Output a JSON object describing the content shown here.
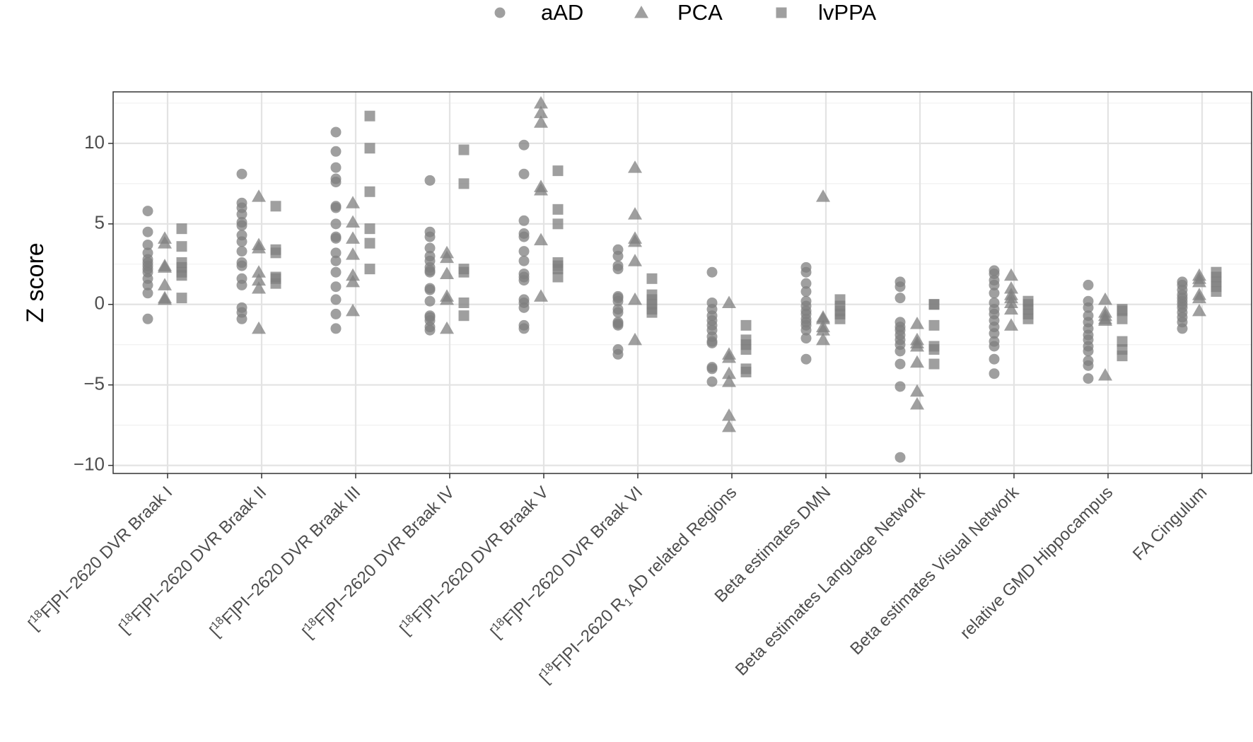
{
  "chart_data": {
    "type": "scatter",
    "title": "",
    "xlabel": "",
    "ylabel": "Z score",
    "ylim": [
      -10.5,
      13.2
    ],
    "yticks": [
      -10,
      -5,
      0,
      5,
      10
    ],
    "ytick_labels": [
      "−10",
      "−5",
      "0",
      "5",
      "10"
    ],
    "grid": true,
    "legend_position": "top",
    "categories": [
      {
        "pre": "[",
        "sup": "18",
        "post": "F]PI−2620 DVR Braak I"
      },
      {
        "pre": "[",
        "sup": "18",
        "post": "F]PI−2620 DVR Braak II"
      },
      {
        "pre": "[",
        "sup": "18",
        "post": "F]PI−2620 DVR Braak III"
      },
      {
        "pre": "[",
        "sup": "18",
        "post": "F]PI−2620 DVR Braak IV"
      },
      {
        "pre": "[",
        "sup": "18",
        "post": "F]PI−2620 DVR Braak V"
      },
      {
        "pre": "[",
        "sup": "18",
        "post": "F]PI−2620 DVR Braak VI"
      },
      {
        "pre": "[",
        "sup": "18",
        "post": "F]PI−2620 R",
        "sub": "1",
        "post2": " AD related Regions"
      },
      {
        "pre": "Beta estimates DMN"
      },
      {
        "pre": "Beta estimates Language Network"
      },
      {
        "pre": "Beta estimates Visual Network"
      },
      {
        "pre": "relative GMD Hippocampus"
      },
      {
        "pre": "FA Cingulum"
      }
    ],
    "series": [
      {
        "name": "aAD",
        "marker": "circle",
        "color": "#7f7f7f",
        "values": [
          [
            5.8,
            4.5,
            3.7,
            3.2,
            2.8,
            2.6,
            2.4,
            2.2,
            2.0,
            1.6,
            1.2,
            0.7,
            -0.9
          ],
          [
            8.1,
            6.3,
            6.0,
            5.6,
            5.1,
            4.9,
            4.3,
            3.9,
            3.3,
            2.6,
            2.4,
            1.6,
            1.2,
            -0.2,
            -0.5,
            -0.9
          ],
          [
            10.7,
            9.5,
            8.5,
            7.8,
            7.6,
            6.1,
            6.0,
            5.0,
            4.2,
            4.1,
            3.2,
            2.7,
            2.0,
            1.1,
            0.3,
            -0.6,
            -1.5
          ],
          [
            7.7,
            4.5,
            4.2,
            3.5,
            3.0,
            2.7,
            2.3,
            2.1,
            2.0,
            1.0,
            0.9,
            0.2,
            -0.7,
            -0.8,
            -1.0,
            -1.4,
            -1.6
          ],
          [
            9.9,
            8.1,
            5.2,
            4.4,
            4.2,
            3.3,
            2.7,
            1.9,
            1.7,
            1.5,
            0.3,
            0.1,
            -0.2,
            -1.3,
            -1.5
          ],
          [
            3.4,
            3.0,
            2.4,
            2.2,
            0.5,
            0.4,
            0.2,
            -0.3,
            -0.5,
            -1.1,
            -1.2,
            -1.3,
            -2.8,
            -3.1
          ],
          [
            2.0,
            0.1,
            -0.3,
            -0.7,
            -1.0,
            -1.3,
            -1.6,
            -2.0,
            -2.3,
            -2.4,
            -3.9,
            -4.0,
            -4.8
          ],
          [
            2.3,
            2.0,
            1.3,
            0.8,
            0.2,
            -0.1,
            -0.4,
            -0.6,
            -0.9,
            -1.1,
            -1.3,
            -1.6,
            -2.1,
            -3.4
          ],
          [
            1.4,
            1.1,
            0.4,
            -1.1,
            -1.4,
            -1.6,
            -1.9,
            -2.2,
            -2.5,
            -2.9,
            -3.7,
            -5.1,
            -9.5
          ],
          [
            2.1,
            1.9,
            1.5,
            1.2,
            0.7,
            0.1,
            -0.3,
            -0.6,
            -1.0,
            -1.4,
            -1.8,
            -2.3,
            -2.6,
            -3.4,
            -4.3
          ],
          [
            1.2,
            0.2,
            -0.2,
            -0.7,
            -1.1,
            -1.5,
            -1.9,
            -2.2,
            -2.6,
            -2.9,
            -3.5,
            -3.8,
            -4.6
          ],
          [
            1.4,
            1.2,
            0.9,
            0.6,
            0.4,
            0.2,
            0.0,
            -0.2,
            -0.5,
            -0.8,
            -1.1,
            -1.5
          ]
        ]
      },
      {
        "name": "PCA",
        "marker": "triangle",
        "color": "#7f7f7f",
        "values": [
          [
            4.1,
            3.8,
            2.4,
            2.3,
            1.2,
            0.4,
            0.3
          ],
          [
            6.7,
            3.7,
            3.5,
            2.0,
            1.5,
            1.0,
            -1.5
          ],
          [
            6.3,
            5.1,
            4.1,
            3.1,
            1.8,
            1.4,
            -0.4
          ],
          [
            3.2,
            2.9,
            1.9,
            0.5,
            0.3,
            -1.5
          ],
          [
            12.5,
            11.9,
            11.3,
            7.3,
            7.1,
            4.0,
            0.5
          ],
          [
            8.5,
            5.6,
            4.1,
            3.9,
            2.7,
            0.3,
            -2.2
          ],
          [
            0.1,
            -3.1,
            -3.3,
            -4.3,
            -4.8,
            -6.9,
            -7.6
          ],
          [
            6.7,
            -0.8,
            -0.9,
            -1.4,
            -1.6,
            -2.2
          ],
          [
            -1.2,
            -2.2,
            -2.4,
            -2.6,
            -3.6,
            -5.4,
            -6.2
          ],
          [
            1.8,
            1.0,
            0.6,
            0.4,
            0.1,
            -0.3,
            -1.3
          ],
          [
            0.3,
            -0.5,
            -0.7,
            -0.9,
            -1.0,
            -4.4
          ],
          [
            1.8,
            1.6,
            1.4,
            0.6,
            0.4,
            -0.4
          ]
        ]
      },
      {
        "name": "lvPPA",
        "marker": "square",
        "color": "#7f7f7f",
        "values": [
          [
            4.7,
            3.6,
            2.6,
            2.3,
            2.0,
            1.8,
            0.4
          ],
          [
            6.1,
            3.4,
            3.2,
            1.7,
            1.6,
            1.3
          ],
          [
            11.7,
            9.7,
            7.0,
            4.7,
            3.8,
            2.2
          ],
          [
            9.6,
            7.5,
            2.2,
            2.0,
            0.1,
            -0.7
          ],
          [
            8.3,
            5.9,
            5.0,
            2.6,
            2.4,
            2.2,
            1.7
          ],
          [
            1.6,
            0.6,
            0.3,
            0.0,
            -0.3,
            -0.5
          ],
          [
            -1.3,
            -2.2,
            -2.5,
            -2.8,
            -4.0,
            -4.2
          ],
          [
            0.3,
            -0.1,
            -0.4,
            -0.6,
            -0.9
          ],
          [
            0.0,
            0.0,
            -1.3,
            -2.6,
            -2.8,
            -3.7
          ],
          [
            0.2,
            0.0,
            -0.3,
            -0.6,
            -0.9
          ],
          [
            -0.3,
            -0.4,
            -0.9,
            -2.3,
            -2.8,
            -3.2
          ],
          [
            2.0,
            1.7,
            1.4,
            1.1,
            0.8
          ]
        ]
      }
    ]
  }
}
